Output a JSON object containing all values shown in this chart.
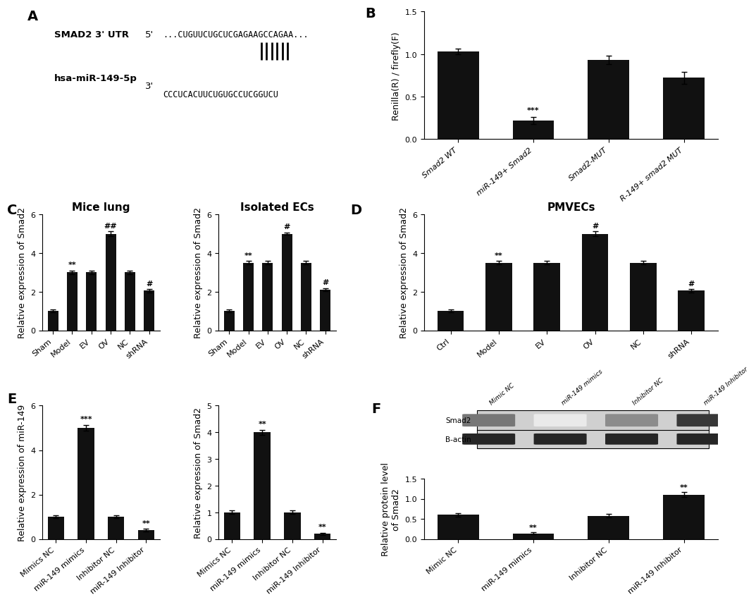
{
  "panel_B": {
    "categories": [
      "Smad2 WT",
      "miR-149+ Smad2",
      "Smad2-MUT",
      "R-149+ smad2 MUT"
    ],
    "values": [
      1.03,
      0.22,
      0.93,
      0.72
    ],
    "errors": [
      0.03,
      0.04,
      0.05,
      0.07
    ],
    "ylabel": "Renilla(R) / firefly(F)",
    "ylim": [
      0,
      1.5
    ],
    "yticks": [
      0.0,
      0.5,
      1.0,
      1.5
    ],
    "sig": [
      "",
      "***",
      "",
      ""
    ],
    "title": ""
  },
  "panel_C_lung": {
    "categories": [
      "Sham",
      "Model",
      "EV",
      "OV",
      "NC",
      "shRNA"
    ],
    "values": [
      1.0,
      3.0,
      3.0,
      5.0,
      3.0,
      2.05
    ],
    "errors": [
      0.07,
      0.1,
      0.1,
      0.12,
      0.1,
      0.08
    ],
    "ylabel": "Relative expression of Smad2",
    "ylim": [
      0,
      6
    ],
    "yticks": [
      0,
      2,
      4,
      6
    ],
    "sig": [
      "",
      "**",
      "",
      "##",
      "",
      "#"
    ],
    "title": "Mice lung"
  },
  "panel_C_EC": {
    "categories": [
      "Sham",
      "Model",
      "EV",
      "OV",
      "NC",
      "shRNA"
    ],
    "values": [
      1.0,
      3.5,
      3.5,
      5.0,
      3.5,
      2.1
    ],
    "errors": [
      0.07,
      0.1,
      0.1,
      0.07,
      0.1,
      0.08
    ],
    "ylabel": "Relative expression of Smad2",
    "ylim": [
      0,
      6
    ],
    "yticks": [
      0,
      2,
      4,
      6
    ],
    "sig": [
      "",
      "**",
      "",
      "#",
      "",
      "#"
    ],
    "title": "Isolated ECs"
  },
  "panel_D": {
    "categories": [
      "Ctrl",
      "Model",
      "EV",
      "OV",
      "NC",
      "shRNA"
    ],
    "values": [
      1.0,
      3.5,
      3.5,
      5.0,
      3.5,
      2.05
    ],
    "errors": [
      0.07,
      0.1,
      0.1,
      0.12,
      0.1,
      0.08
    ],
    "ylabel": "Relative expression of Smad2",
    "ylim": [
      0,
      6
    ],
    "yticks": [
      0,
      2,
      4,
      6
    ],
    "sig": [
      "",
      "**",
      "",
      "#",
      "",
      "#"
    ],
    "title": "PMVECs"
  },
  "panel_E_miR": {
    "categories": [
      "Mimics NC",
      "miR-149 mimics",
      "Inhibitor NC",
      "miR-149 Inhibitor"
    ],
    "values": [
      1.0,
      5.0,
      1.0,
      0.4
    ],
    "errors": [
      0.07,
      0.12,
      0.07,
      0.05
    ],
    "ylabel": "Relative expression of miR-149",
    "ylim": [
      0,
      6
    ],
    "yticks": [
      0,
      2,
      4,
      6
    ],
    "sig": [
      "",
      "***",
      "",
      "**"
    ],
    "title": ""
  },
  "panel_E_smad2": {
    "categories": [
      "Mimics NC",
      "miR-149 mimics",
      "Inhibitor NC",
      "miR-149 Inhibitor"
    ],
    "values": [
      1.0,
      4.0,
      1.0,
      0.2
    ],
    "errors": [
      0.07,
      0.1,
      0.07,
      0.04
    ],
    "ylabel": "Relative expression of Smad2",
    "ylim": [
      0,
      5
    ],
    "yticks": [
      0,
      1,
      2,
      3,
      4,
      5
    ],
    "sig": [
      "",
      "**",
      "",
      "**"
    ],
    "title": ""
  },
  "panel_F": {
    "categories": [
      "Mimic NC",
      "miR-149 mimics",
      "Inhibitor NC",
      "miR-149 Inhibitor"
    ],
    "values": [
      0.6,
      0.14,
      0.58,
      1.1
    ],
    "errors": [
      0.04,
      0.03,
      0.04,
      0.06
    ],
    "ylabel": "Relative protein level\nof Smad2",
    "ylim": [
      0,
      1.5
    ],
    "yticks": [
      0.0,
      0.5,
      1.0,
      1.5
    ],
    "sig": [
      "",
      "**",
      "",
      "**"
    ],
    "title": "",
    "blot_smad2": [
      0.65,
      0.1,
      0.55,
      0.95
    ],
    "blot_bactin": [
      0.85,
      0.85,
      0.85,
      0.85
    ]
  },
  "bar_color": "#111111",
  "panel_labels_fontsize": 14,
  "tick_fontsize": 8,
  "label_fontsize": 9,
  "title_fontsize": 11
}
